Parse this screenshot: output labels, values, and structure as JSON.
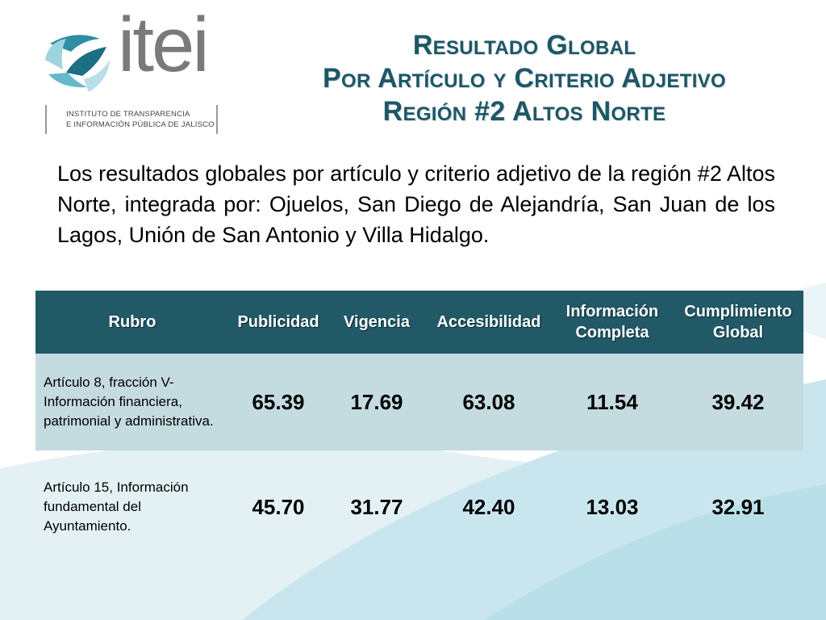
{
  "logo": {
    "word": "itei",
    "subtitle_line1": "INSTITUTO DE TRANSPARENCIA",
    "subtitle_line2": "E INFORMACIÓN PÚBLICA DE JALISCO"
  },
  "title": {
    "line1": "Resultado Global",
    "line2": "Por Artículo y Criterio Adjetivo",
    "line3": "Región #2 Altos Norte"
  },
  "intro": "Los resultados globales por artículo y criterio adjetivo de la región #2 Altos Norte, integrada por: Ojuelos, San Diego de Alejandría, San Juan de los Lagos, Unión de San Antonio y Villa Hidalgo.",
  "table": {
    "headers": {
      "rubro": "Rubro",
      "publicidad": "Publicidad",
      "vigencia": "Vigencia",
      "accesibilidad": "Accesibilidad",
      "informacion_line1": "Información",
      "informacion_line2": "Completa",
      "cumplimiento_line1": "Cumplimiento",
      "cumplimiento_line2": "Global"
    },
    "rows": [
      {
        "rubro": "Artículo 8, fracción V- Información financiera, patrimonial y administrativa.",
        "publicidad": "65.39",
        "vigencia": "17.69",
        "accesibilidad": "63.08",
        "informacion_completa": "11.54",
        "cumplimiento_global": "39.42"
      },
      {
        "rubro": "Artículo 15, Información fundamental del Ayuntamiento.",
        "publicidad": "45.70",
        "vigencia": "31.77",
        "accesibilidad": "42.40",
        "informacion_completa": "13.03",
        "cumplimiento_global": "32.91"
      }
    ]
  },
  "colors": {
    "title": "#1e5766",
    "header_bg": "#215967",
    "row_highlight": "#c4dbe0",
    "bg_wave": "#d4ebf1"
  }
}
